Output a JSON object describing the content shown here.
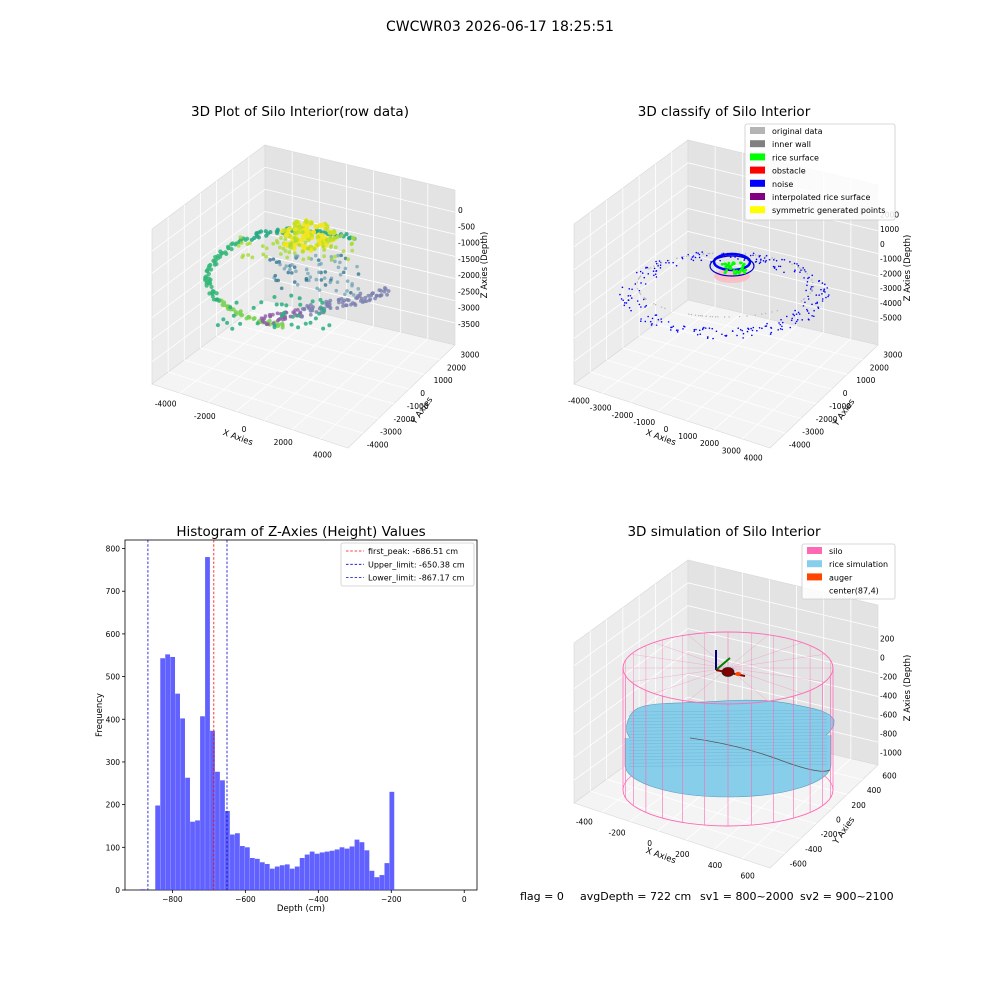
{
  "figure_title": "CWCWR03 2026-06-17 18:25:51",
  "footer": {
    "flag": "flag = 0",
    "avg_depth": "avgDepth = 722 cm",
    "sv1": "sv1 = 800~2000",
    "sv2": "sv2 = 900~2100"
  },
  "colors": {
    "hist_bar": "#5050ff",
    "first_peak": "#ff0000",
    "limits": "#0000cc",
    "silo": "#ff69b4",
    "rice": "#87ceeb",
    "auger": "#ff4500",
    "pane": "#f2f2f2",
    "grid": "#d8d8d8"
  },
  "chart_data": [
    {
      "type": "scatter3d",
      "title": "3D Plot of Silo Interior(row data)",
      "xlabel": "X Axies",
      "ylabel": "Y Axies",
      "zlabel": "Z Axies (Depth)",
      "xticks": [
        "-4000",
        "-2000",
        "0",
        "2000",
        "4000"
      ],
      "yticks": [
        "3000",
        "2000",
        "1000",
        "0",
        "-1000",
        "-2000",
        "-3000",
        "-4000"
      ],
      "zticks": [
        "0",
        "-500",
        "-1000",
        "-1500",
        "-2000",
        "-2500",
        "-3000",
        "-3500"
      ],
      "colormap": "viridis",
      "clusters": [
        {
          "shape": "ring-arc",
          "x_range": [
            -3600,
            1200
          ],
          "y_range": [
            -3300,
            2600
          ],
          "z_range": [
            -3300,
            -2200
          ],
          "color": "#3fb97a"
        },
        {
          "shape": "blob",
          "x_range": [
            200,
            1500
          ],
          "y_range": [
            1200,
            2500
          ],
          "z_range": [
            -1200,
            -300
          ],
          "color": "#f0e21c"
        },
        {
          "shape": "wall-arc",
          "x_range": [
            -1500,
            3500
          ],
          "y_range": [
            -1500,
            500
          ],
          "z_range": [
            -3300,
            -2500
          ],
          "color": "#8a86b8"
        }
      ]
    },
    {
      "type": "scatter3d",
      "title": "3D classify of Silo Interior",
      "xlabel": "X Axies",
      "ylabel": "Y Axies",
      "zlabel": "Z Axies (Depth)",
      "xticks": [
        "-4000",
        "-3000",
        "-2000",
        "-1000",
        "0",
        "1000",
        "2000",
        "3000",
        "4000"
      ],
      "yticks": [
        "3000",
        "2000",
        "1000",
        "0",
        "-1000",
        "-2000",
        "-3000",
        "-4000"
      ],
      "zticks": [
        "2000",
        "1000",
        "0",
        "-1000",
        "-2000",
        "-3000",
        "-4000",
        "-5000"
      ],
      "legend": [
        {
          "label": "original data",
          "color": "#b4b4b4"
        },
        {
          "label": "inner wall",
          "color": "#808080"
        },
        {
          "label": "rice surface",
          "color": "#00ff00"
        },
        {
          "label": "obstacle",
          "color": "#ff0000"
        },
        {
          "label": "noise",
          "color": "#0000ff"
        },
        {
          "label": "interpolated rice surface",
          "color": "#800080"
        },
        {
          "label": "symmetric generated points",
          "color": "#ffff00"
        }
      ]
    },
    {
      "type": "bar",
      "title": "Histogram of Z-Axies (Height) Values",
      "xlabel": "Depth (cm)",
      "ylabel": "Frequency",
      "xlim": [
        -930,
        35
      ],
      "ylim": [
        0,
        820
      ],
      "xticks": [
        -800,
        -600,
        -400,
        -200,
        0
      ],
      "yticks": [
        0,
        100,
        200,
        300,
        400,
        500,
        600,
        700,
        800
      ],
      "bin_width": 13.66,
      "bins": [
        {
          "x0": -888,
          "value": 2
        },
        {
          "x0": -874.3,
          "value": 0
        },
        {
          "x0": -860.7,
          "value": 0
        },
        {
          "x0": -847,
          "value": 198
        },
        {
          "x0": -833.3,
          "value": 543
        },
        {
          "x0": -819.7,
          "value": 552
        },
        {
          "x0": -806,
          "value": 546
        },
        {
          "x0": -792.4,
          "value": 460
        },
        {
          "x0": -778.7,
          "value": 402
        },
        {
          "x0": -765,
          "value": 263
        },
        {
          "x0": -751.4,
          "value": 160
        },
        {
          "x0": -737.7,
          "value": 163
        },
        {
          "x0": -724.1,
          "value": 407
        },
        {
          "x0": -710.4,
          "value": 780
        },
        {
          "x0": -696.7,
          "value": 373
        },
        {
          "x0": -683.1,
          "value": 277
        },
        {
          "x0": -669.4,
          "value": 257
        },
        {
          "x0": -655.8,
          "value": 185
        },
        {
          "x0": -642.1,
          "value": 130
        },
        {
          "x0": -628.4,
          "value": 133
        },
        {
          "x0": -614.8,
          "value": 103
        },
        {
          "x0": -601.1,
          "value": 100
        },
        {
          "x0": -587.5,
          "value": 75
        },
        {
          "x0": -573.8,
          "value": 73
        },
        {
          "x0": -560.1,
          "value": 65
        },
        {
          "x0": -546.5,
          "value": 61
        },
        {
          "x0": -532.8,
          "value": 50
        },
        {
          "x0": -519.2,
          "value": 55
        },
        {
          "x0": -505.5,
          "value": 58
        },
        {
          "x0": -491.8,
          "value": 60
        },
        {
          "x0": -478.2,
          "value": 50
        },
        {
          "x0": -464.5,
          "value": 55
        },
        {
          "x0": -450.9,
          "value": 75
        },
        {
          "x0": -437.2,
          "value": 83
        },
        {
          "x0": -423.5,
          "value": 90
        },
        {
          "x0": -409.9,
          "value": 85
        },
        {
          "x0": -396.2,
          "value": 88
        },
        {
          "x0": -382.6,
          "value": 90
        },
        {
          "x0": -368.9,
          "value": 92
        },
        {
          "x0": -355.2,
          "value": 95
        },
        {
          "x0": -341.6,
          "value": 100
        },
        {
          "x0": -327.9,
          "value": 97
        },
        {
          "x0": -314.3,
          "value": 102
        },
        {
          "x0": -300.6,
          "value": 118
        },
        {
          "x0": -286.9,
          "value": 112
        },
        {
          "x0": -273.3,
          "value": 93
        },
        {
          "x0": -259.6,
          "value": 45
        },
        {
          "x0": -246,
          "value": 30
        },
        {
          "x0": -232.3,
          "value": 35
        },
        {
          "x0": -218.6,
          "value": 63
        },
        {
          "x0": -205,
          "value": 230
        }
      ],
      "vlines": [
        {
          "label": "first_peak: -686.51 cm",
          "x": -686.51,
          "color": "#ff0000"
        },
        {
          "label": "Upper_limit: -650.38 cm",
          "x": -650.38,
          "color": "#0000cc"
        },
        {
          "label": "Lower_limit: -867.17 cm",
          "x": -867.17,
          "color": "#0000cc"
        }
      ],
      "legend_position": "upper right"
    },
    {
      "type": "surface3d",
      "title": "3D simulation of Silo Interior",
      "xlabel": "X Axies",
      "ylabel": "Y Axies",
      "zlabel": "Z Axies (Depth)",
      "xticks": [
        "-400",
        "-200",
        "0",
        "200",
        "400",
        "600"
      ],
      "yticks": [
        "600",
        "400",
        "200",
        "0",
        "-200",
        "-400",
        "-600"
      ],
      "zticks": [
        "200",
        "0",
        "-200",
        "-400",
        "-600",
        "-800",
        "-1000"
      ],
      "legend": [
        {
          "label": "silo",
          "color": "#ff69b4"
        },
        {
          "label": "rice simulation",
          "color": "#87ceeb"
        },
        {
          "label": "auger",
          "color": "#ff4500"
        },
        {
          "label": "center(87,4)",
          "color": ""
        }
      ]
    }
  ]
}
